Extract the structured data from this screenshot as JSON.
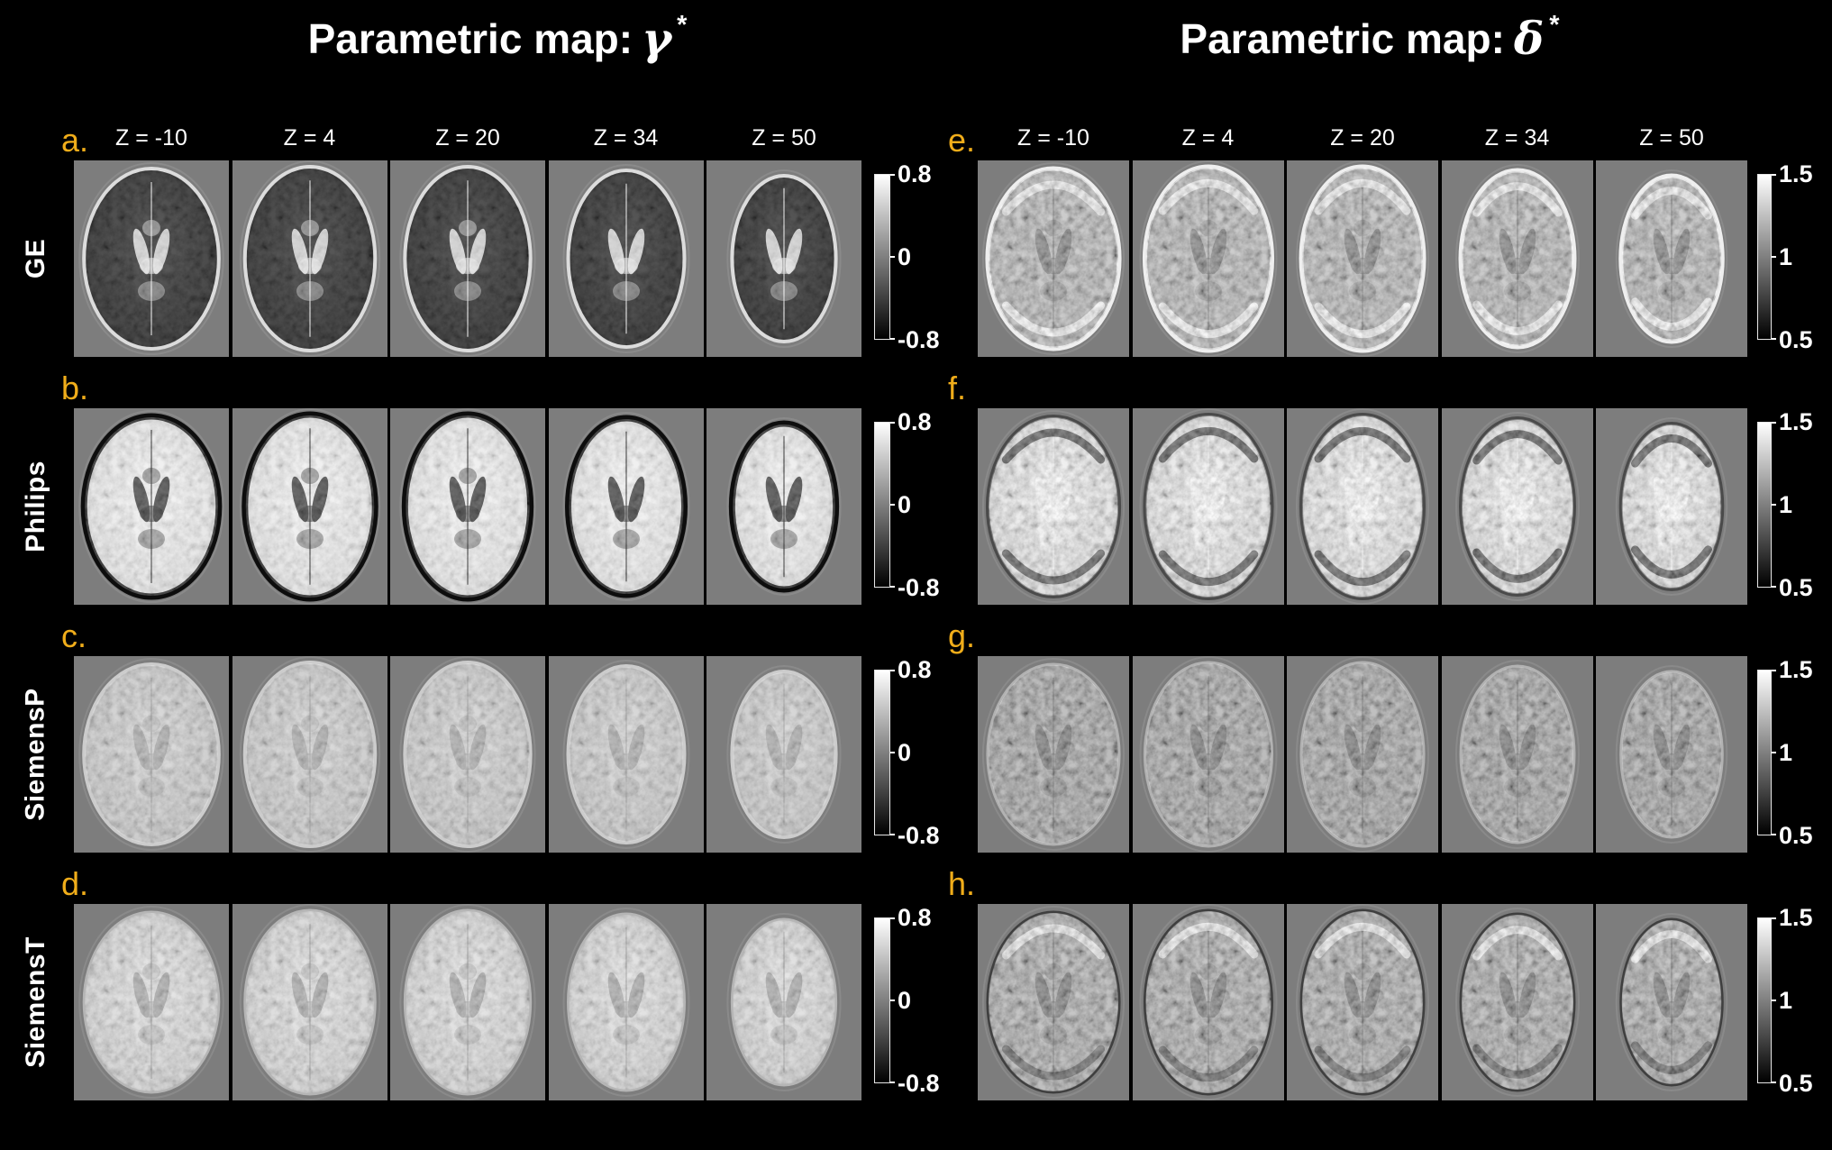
{
  "figure": {
    "colors": {
      "background": "#000000",
      "slice_background": "#7d7d7d",
      "panel_letter": "#f0ad1a",
      "label_text": "#ffffff"
    },
    "slice_columns": [
      "Z = -10",
      "Z = 4",
      "Z = 20",
      "Z = 34",
      "Z = 50"
    ],
    "scanners": [
      "GE",
      "Philips",
      "SiemensP",
      "SiemensT"
    ],
    "panels": [
      {
        "name": "gamma",
        "title": {
          "prefix": "Parametric map:",
          "symbol": "γ",
          "superscript": "*"
        },
        "colorbar_ticks": {
          "top": "0.8",
          "mid": "0",
          "bottom": "-0.8"
        },
        "rows": [
          {
            "letter": "a.",
            "scanner": "GE",
            "appearance": {
              "base": "#181818",
              "rim": "#dcdcdc",
              "rim_width": 4,
              "glow": "#3f3f3f",
              "structures": "#ededed",
              "noise": 0.2,
              "top_arc": "",
              "bottom_arc": ""
            }
          },
          {
            "letter": "b.",
            "scanner": "Philips",
            "appearance": {
              "base": "#d9d9d9",
              "rim": "#0d0d0d",
              "rim_width": 7,
              "glow": "#ffffff",
              "structures": "#1a1a1a",
              "noise": 0.28,
              "top_arc": "",
              "bottom_arc": ""
            }
          },
          {
            "letter": "c.",
            "scanner": "SiemensP",
            "appearance": {
              "base": "#b2b2b2",
              "rim": "#cccccc",
              "rim_width": 4,
              "glow": "#dadada",
              "structures": "#9a9a9a",
              "noise": 0.32,
              "top_arc": "",
              "bottom_arc": ""
            }
          },
          {
            "letter": "d.",
            "scanner": "SiemensT",
            "appearance": {
              "base": "#c0c0c0",
              "rim": "#b5b5b5",
              "rim_width": 3,
              "glow": "#eaeaea",
              "structures": "#979797",
              "noise": 0.32,
              "top_arc": "",
              "bottom_arc": ""
            }
          }
        ]
      },
      {
        "name": "delta",
        "title": {
          "prefix": "Parametric map:",
          "symbol": "δ",
          "superscript": "*"
        },
        "colorbar_ticks": {
          "top": "1.5",
          "mid": "1",
          "bottom": "0.5"
        },
        "rows": [
          {
            "letter": "e.",
            "scanner": "GE",
            "appearance": {
              "base": "#8e8e8e",
              "rim": "#efefef",
              "rim_width": 5,
              "glow": "#a6a6a6",
              "structures": "#474747",
              "noise": 0.5,
              "top_arc": "#f2f2f2",
              "bottom_arc": "#fafafa"
            }
          },
          {
            "letter": "f.",
            "scanner": "Philips",
            "appearance": {
              "base": "#c9c9c9",
              "rim": "#4a4a4a",
              "rim_width": 4,
              "glow": "#ffffff",
              "structures": "#fdfdfd",
              "noise": 0.45,
              "top_arc": "#0d0d0d",
              "bottom_arc": "#101010"
            }
          },
          {
            "letter": "g.",
            "scanner": "SiemensP",
            "appearance": {
              "base": "#747474",
              "rim": "#b2b2b2",
              "rim_width": 3,
              "glow": "#8f8f8f",
              "structures": "#3d3d3d",
              "noise": 0.5,
              "top_arc": "",
              "bottom_arc": ""
            }
          },
          {
            "letter": "h.",
            "scanner": "SiemensT",
            "appearance": {
              "base": "#7e7e7e",
              "rim": "#3f3f3f",
              "rim_width": 3,
              "glow": "#999999",
              "structures": "#404040",
              "noise": 0.5,
              "top_arc": "#eeeeee",
              "bottom_arc": "#1a1a1a"
            }
          }
        ]
      }
    ]
  }
}
